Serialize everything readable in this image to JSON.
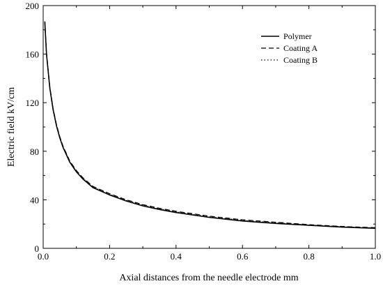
{
  "chart_data": {
    "type": "line",
    "xlabel": "Axial distances from the needle electrode mm",
    "ylabel": "Electric field kV/cm",
    "xlim": [
      0,
      1.0
    ],
    "ylim": [
      0,
      200
    ],
    "xticks": [
      0.0,
      0.2,
      0.4,
      0.6,
      0.8,
      1.0
    ],
    "xtick_labels": [
      "0.0",
      "0.2",
      "0.4",
      "0.6",
      "0.8",
      "1.0"
    ],
    "yticks": [
      0,
      40,
      80,
      120,
      160,
      200
    ],
    "ytick_labels": [
      "0",
      "40",
      "80",
      "120",
      "160",
      "200"
    ],
    "grid": false,
    "legend_position": "top-right",
    "series": [
      {
        "name": "Polymer",
        "style": "solid",
        "x": [
          0.005,
          0.01,
          0.02,
          0.03,
          0.04,
          0.05,
          0.06,
          0.08,
          0.1,
          0.12,
          0.15,
          0.2,
          0.25,
          0.3,
          0.35,
          0.4,
          0.5,
          0.6,
          0.7,
          0.8,
          0.9,
          1.0
        ],
        "y": [
          186,
          160,
          132,
          114,
          101,
          91,
          83,
          71,
          63,
          57,
          50,
          44,
          39,
          35,
          32,
          29.5,
          25.5,
          22.5,
          20.5,
          19,
          17.5,
          16.5
        ]
      },
      {
        "name": "Coating A",
        "style": "dashed",
        "x": [
          0.005,
          0.01,
          0.02,
          0.03,
          0.04,
          0.05,
          0.06,
          0.08,
          0.1,
          0.12,
          0.15,
          0.2,
          0.25,
          0.3,
          0.35,
          0.4,
          0.5,
          0.6,
          0.7,
          0.8,
          0.9,
          1.0
        ],
        "y": [
          187,
          161,
          133,
          115,
          102,
          92,
          84,
          72,
          64,
          58,
          51,
          45,
          40,
          36,
          33,
          30.5,
          26.5,
          23.5,
          21.5,
          19.5,
          18,
          17
        ]
      },
      {
        "name": "Coating B",
        "style": "dotted",
        "x": [
          0.005,
          0.01,
          0.02,
          0.03,
          0.04,
          0.05,
          0.06,
          0.08,
          0.1,
          0.12,
          0.15,
          0.2,
          0.25,
          0.3,
          0.35,
          0.4,
          0.5,
          0.6,
          0.7,
          0.8,
          0.9,
          1.0
        ],
        "y": [
          186.5,
          160.5,
          132.5,
          114.5,
          101.5,
          91.5,
          83.5,
          71.5,
          63.5,
          57.5,
          50.5,
          44.5,
          39.5,
          35.5,
          32.5,
          30,
          26,
          23,
          21,
          19.2,
          17.8,
          16.8
        ]
      }
    ]
  }
}
